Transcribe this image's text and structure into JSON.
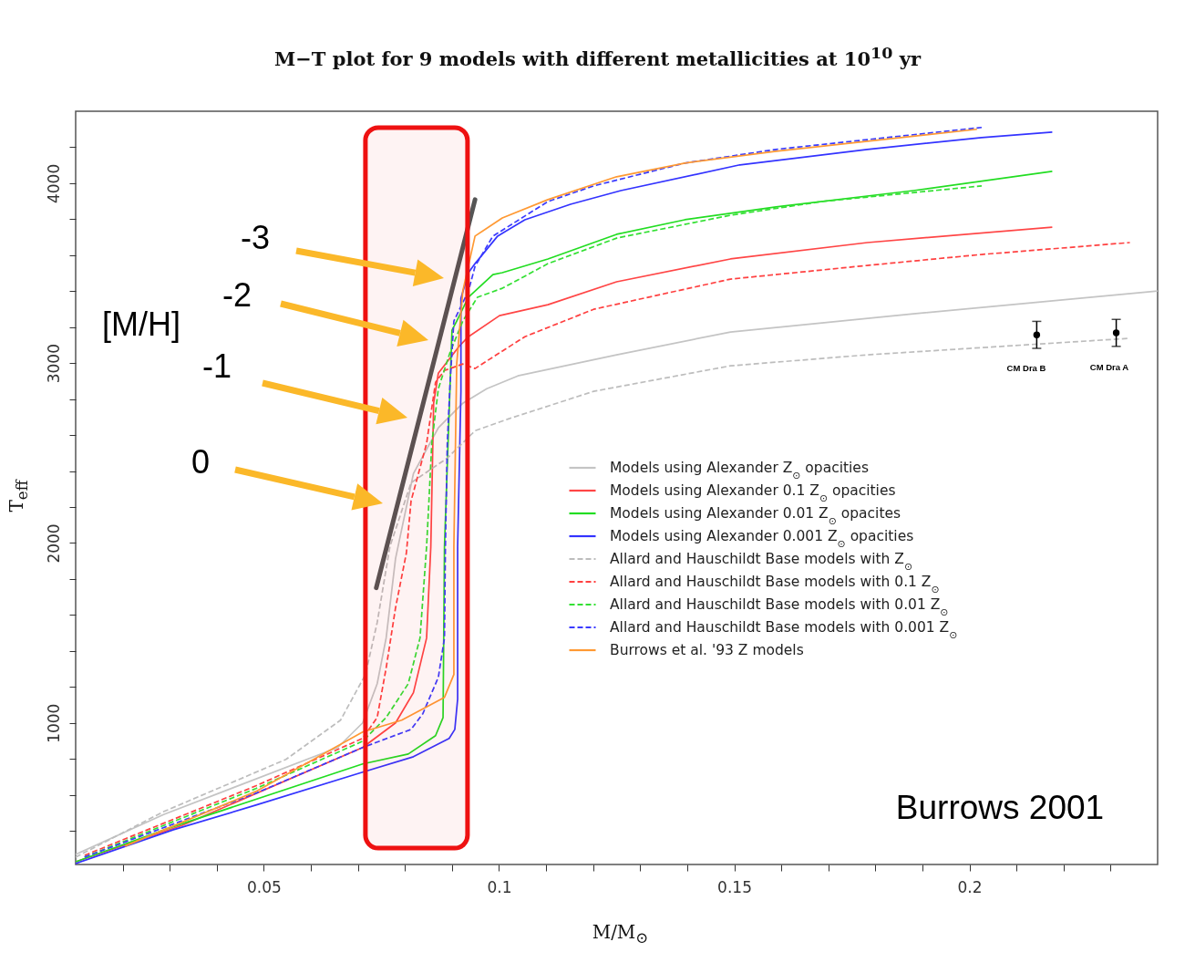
{
  "chart_data": {
    "type": "line",
    "title": "M−T plot for 9 models with different metallicities at 10$^{10}$ yr",
    "xlabel": "M/M$_{⊙}$",
    "ylabel": "T$_{eff}$",
    "xlim": [
      0.01,
      0.24
    ],
    "ylim": [
      213,
      4400
    ],
    "xticks": [
      {
        "value": 0.02,
        "label": null
      },
      {
        "value": 0.03,
        "label": null
      },
      {
        "value": 0.04,
        "label": null
      },
      0.05,
      {
        "value": 0.06,
        "label": null
      },
      {
        "value": 0.07,
        "label": null
      },
      {
        "value": 0.08,
        "label": null
      },
      {
        "value": 0.09,
        "label": null
      },
      0.1,
      {
        "value": 0.11,
        "label": null
      },
      {
        "value": 0.12,
        "label": null
      },
      {
        "value": 0.13,
        "label": null
      },
      {
        "value": 0.14,
        "label": null
      },
      0.15,
      {
        "value": 0.16,
        "label": null
      },
      {
        "value": 0.17,
        "label": null
      },
      {
        "value": 0.18,
        "label": null
      },
      {
        "value": 0.19,
        "label": null
      },
      0.2,
      {
        "value": 0.21,
        "label": null
      },
      {
        "value": 0.22,
        "label": null
      },
      {
        "value": 0.23,
        "label": null
      }
    ],
    "yticks": [
      {
        "value": 400,
        "label": null
      },
      {
        "value": 600,
        "label": null
      },
      {
        "value": 800,
        "label": null
      },
      1000,
      {
        "value": 1200,
        "label": null
      },
      {
        "value": 1400,
        "label": null
      },
      {
        "value": 1600,
        "label": null
      },
      {
        "value": 1800,
        "label": null
      },
      2000,
      {
        "value": 2200,
        "label": null
      },
      {
        "value": 2400,
        "label": null
      },
      {
        "value": 2600,
        "label": null
      },
      {
        "value": 2800,
        "label": null
      },
      3000,
      {
        "value": 3200,
        "label": null
      },
      {
        "value": 3400,
        "label": null
      },
      {
        "value": 3600,
        "label": null
      },
      {
        "value": 3800,
        "label": null
      },
      4000,
      {
        "value": 4200,
        "label": null
      }
    ],
    "grid": false,
    "legend": "right",
    "series": [
      {
        "name": "Models using Alexander Z$_{⊙}$ opacities",
        "color": "#c4c4c4",
        "line_style": "solid",
        "x": [
          0.01,
          0.0288,
          0.0657,
          0.071,
          0.0741,
          0.076,
          0.078,
          0.0818,
          0.0871,
          0.0923,
          0.0974,
          0.104,
          0.125,
          0.1492,
          0.1881,
          0.24
        ],
        "values": [
          269,
          492,
          863,
          1000,
          1218,
          1472,
          1914,
          2386,
          2640,
          2777,
          2858,
          2929,
          3046,
          3173,
          3274,
          3401
        ]
      },
      {
        "name": "Models using Alexander 0.1 Z$_{⊙}$ opacities",
        "color": "#ff4545",
        "line_style": "solid",
        "x": [
          0.01,
          0.0327,
          0.071,
          0.078,
          0.0818,
          0.0846,
          0.0855,
          0.0861,
          0.0871,
          0.0916,
          0.0935,
          0.1001,
          0.1104,
          0.125,
          0.1492,
          0.1783,
          0.2176
        ],
        "values": [
          228,
          431,
          863,
          1000,
          1168,
          1472,
          1980,
          2777,
          2944,
          3096,
          3147,
          3264,
          3325,
          3452,
          3579,
          3670,
          3756
        ]
      },
      {
        "name": "Models using Alexander 0.01 Z$_{⊙}$ opacites",
        "color": "#22dd22",
        "line_style": "solid",
        "x": [
          0.01,
          0.0288,
          0.071,
          0.0807,
          0.0865,
          0.0881,
          0.0884,
          0.09,
          0.091,
          0.0935,
          0.0987,
          0.1007,
          0.1104,
          0.125,
          0.1395,
          0.1589,
          0.1881,
          0.2176
        ],
        "values": [
          228,
          406,
          772,
          827,
          929,
          1030,
          1980,
          3183,
          3234,
          3366,
          3492,
          3503,
          3579,
          3716,
          3797,
          3868,
          3959,
          4066
        ]
      },
      {
        "name": "Models using Alexander 0.001 Z$_{⊙}$ opacities",
        "color": "#3333ff",
        "line_style": "solid",
        "x": [
          0.01,
          0.0308,
          0.0483,
          0.071,
          0.0818,
          0.0894,
          0.0906,
          0.0912,
          0.0912,
          0.0919,
          0.0919,
          0.0935,
          0.0949,
          0.0997,
          0.1055,
          0.1152,
          0.1259,
          0.1512,
          0.1783,
          0.2026,
          0.2176
        ],
        "values": [
          218,
          406,
          543,
          726,
          812,
          914,
          964,
          1132,
          1980,
          2843,
          3360,
          3503,
          3553,
          3706,
          3797,
          3883,
          3959,
          4102,
          4188,
          4254,
          4284
        ]
      },
      {
        "name": "Allard and Hauschildt Base models with Z$_{⊙}$",
        "color": "#bdbdbd",
        "line_style": "dashed",
        "x": [
          0.01,
          0.0288,
          0.0547,
          0.0663,
          0.0716,
          0.0741,
          0.0768,
          0.0813,
          0.089,
          0.0949,
          0.102,
          0.1201,
          0.1492,
          0.1783,
          0.2026,
          0.2337
        ],
        "values": [
          254,
          508,
          797,
          1015,
          1269,
          1558,
          1980,
          2335,
          2472,
          2624,
          2690,
          2843,
          2985,
          3046,
          3086,
          3137
        ]
      },
      {
        "name": "Allard and Hauschildt Base models with 0.1 Z$_{⊙}$",
        "color": "#ff4040",
        "line_style": "dashed",
        "x": [
          0.0119,
          0.0483,
          0.071,
          0.0741,
          0.076,
          0.078,
          0.0803,
          0.0813,
          0.0846,
          0.0865,
          0.0884,
          0.0923,
          0.0949,
          0.1055,
          0.1201,
          0.1492,
          0.1783,
          0.2026,
          0.2341
        ],
        "values": [
          264,
          650,
          914,
          1030,
          1305,
          1640,
          1944,
          2234,
          2553,
          2893,
          2959,
          2995,
          2970,
          3147,
          3299,
          3467,
          3543,
          3604,
          3670
        ]
      },
      {
        "name": "Allard and Hauschildt Base models with 0.01 Z$_{⊙}$",
        "color": "#33e033",
        "line_style": "dashed",
        "x": [
          0.0119,
          0.0483,
          0.071,
          0.076,
          0.0807,
          0.0832,
          0.0846,
          0.0851,
          0.0857,
          0.0871,
          0.0896,
          0.0923,
          0.0954,
          0.1007,
          0.1104,
          0.125,
          0.1492,
          0.1686,
          0.2026
        ],
        "values": [
          254,
          635,
          898,
          1030,
          1218,
          1472,
          1980,
          2234,
          2553,
          2858,
          3061,
          3234,
          3366,
          3416,
          3553,
          3695,
          3822,
          3898,
          3985
        ]
      },
      {
        "name": "Allard and Hauschildt Base models with 0.001 Z$_{⊙}$",
        "color": "#3a3aff",
        "line_style": "dashed",
        "x": [
          0.0119,
          0.0483,
          0.071,
          0.0813,
          0.0838,
          0.0871,
          0.0884,
          0.0886,
          0.089,
          0.0896,
          0.0904,
          0.0935,
          0.0949,
          0.0987,
          0.1104,
          0.1201,
          0.1395,
          0.1589,
          0.2026
        ],
        "values": [
          254,
          609,
          863,
          964,
          1051,
          1254,
          1472,
          1980,
          2553,
          2893,
          3234,
          3401,
          3538,
          3706,
          3898,
          3985,
          4112,
          4188,
          4310
        ]
      },
      {
        "name": "Burrows et al. '93 Z models",
        "color": "#ff9933",
        "line_style": "solid",
        "x": [
          0.0205,
          0.0483,
          0.071,
          0.0793,
          0.0884,
          0.0904,
          0.0904,
          0.091,
          0.0923,
          0.0949,
          0.1007,
          0.1104,
          0.125,
          0.1395,
          0.1589,
          0.2016
        ],
        "values": [
          315,
          619,
          949,
          1015,
          1142,
          1269,
          1980,
          2995,
          3401,
          3706,
          3807,
          3909,
          4036,
          4112,
          4178,
          4300
        ]
      },
      {
        "type": "line",
        "color": "#555555",
        "line_style": "solid",
        "x": [
          0.0739,
          0.0949
        ],
        "values": [
          1751,
          3909
        ]
      },
      {
        "type": "scatter",
        "color": "#000000",
        "x": [
          0.2143,
          0.2312
        ],
        "values": [
          3157,
          3168
        ],
        "errors": [
          75,
          75
        ]
      }
    ],
    "bands": [
      {
        "axis": "x",
        "from": 0.0716,
        "to": 0.0933,
        "color": "#ee1111"
      }
    ],
    "annotations": [
      "-3",
      "-2",
      "-1",
      "0",
      "[M/H]",
      "CM Dra B",
      "CM Dra A",
      "Burrows 2001"
    ]
  }
}
